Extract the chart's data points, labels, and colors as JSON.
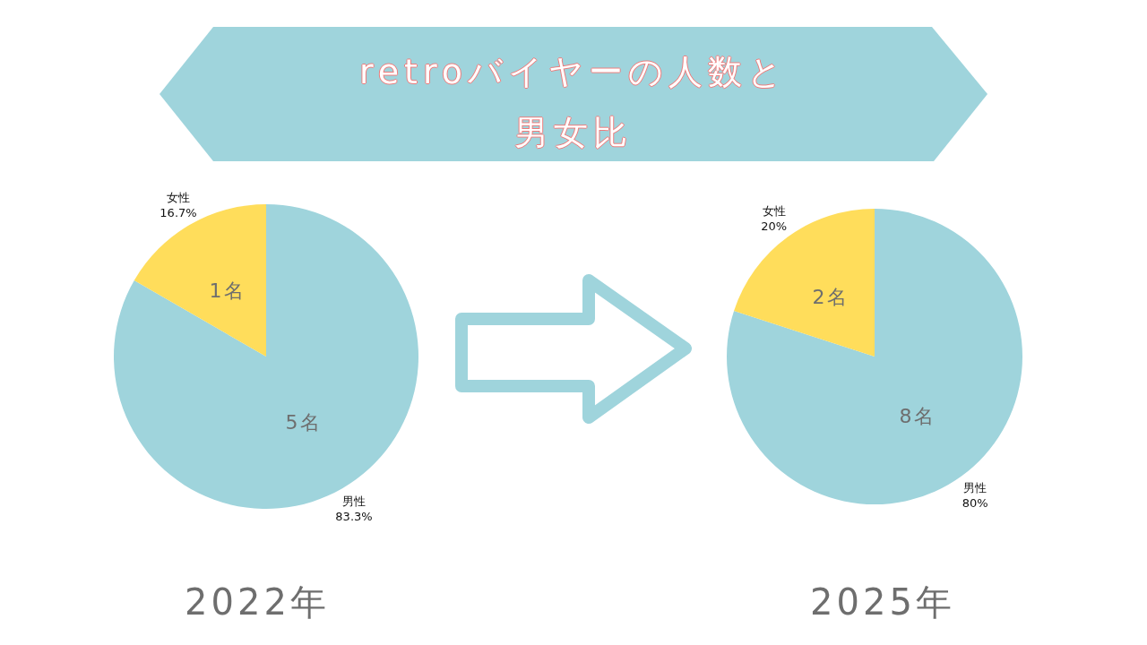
{
  "chart_data": [
    {
      "type": "pie",
      "title": "retroバイヤーの人数と男女比",
      "categories": [
        "男性",
        "女性"
      ],
      "values": [
        5,
        1
      ],
      "colors": [
        "#9fd4dc",
        "#ffdd5b"
      ],
      "value_labels": [
        "5名",
        "1名"
      ],
      "annotations": [
        "83.3%",
        "16.7%"
      ],
      "xlabel": "2022年"
    },
    {
      "type": "pie",
      "categories": [
        "男性",
        "女性"
      ],
      "values": [
        8,
        2
      ],
      "colors": [
        "#9fd4dc",
        "#ffdd5b"
      ],
      "value_labels": [
        "8名",
        "2名"
      ],
      "annotations": [
        "80%",
        "20%"
      ],
      "xlabel": "2025年"
    }
  ]
}
